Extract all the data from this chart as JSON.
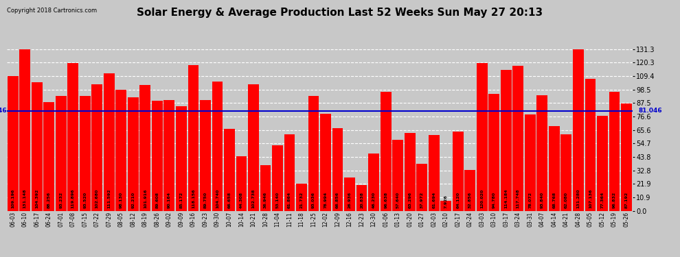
{
  "title": "Solar Energy & Average Production Last 52 Weeks Sun May 27 20:13",
  "copyright": "Copyright 2018 Cartronics.com",
  "average_line": 81.046,
  "bar_color": "#ff0000",
  "average_line_color": "#0000cc",
  "background_color": "#c8c8c8",
  "plot_bg_color": "#c8c8c8",
  "legend_avg_color": "#0000cc",
  "legend_weekly_color": "#ff0000",
  "yticks": [
    0.0,
    10.9,
    21.9,
    32.8,
    43.8,
    54.7,
    65.6,
    76.6,
    87.5,
    98.5,
    109.4,
    120.3,
    131.3
  ],
  "dates": [
    "06-03",
    "06-10",
    "06-17",
    "06-24",
    "07-01",
    "07-08",
    "07-15",
    "07-22",
    "07-29",
    "08-05",
    "08-12",
    "08-19",
    "08-26",
    "09-02",
    "09-09",
    "09-16",
    "09-23",
    "09-30",
    "10-07",
    "10-14",
    "10-21",
    "10-28",
    "11-04",
    "11-11",
    "11-18",
    "11-25",
    "12-02",
    "12-09",
    "12-16",
    "12-23",
    "12-30",
    "01-06",
    "01-13",
    "01-20",
    "01-27",
    "02-03",
    "02-10",
    "02-17",
    "02-24",
    "03-03",
    "03-10",
    "03-17",
    "03-24",
    "03-31",
    "04-07",
    "04-14",
    "04-21",
    "04-28",
    "05-05",
    "05-12",
    "05-19",
    "05-26"
  ],
  "values": [
    109.196,
    131.148,
    104.392,
    88.256,
    93.232,
    119.896,
    93.52,
    102.68,
    111.592,
    98.13,
    92.21,
    101.916,
    89.608,
    90.164,
    85.172,
    118.156,
    89.75,
    104.74,
    66.658,
    44.308,
    102.738,
    36.946,
    53.14,
    61.864,
    21.732,
    93.036,
    78.994,
    66.856,
    26.936,
    20.838,
    46.23,
    96.638,
    57.64,
    63.296,
    37.972,
    61.694,
    7.926,
    64.12,
    32.856,
    120.02,
    94.78,
    114.184,
    117.748,
    78.072,
    93.84,
    68.768,
    62.08,
    131.28,
    107.136,
    77.364,
    96.832,
    87.192
  ],
  "ylim_max": 142,
  "bar_width": 0.9,
  "label_fontsize": 4.5,
  "tick_fontsize": 7,
  "xtick_fontsize": 5.5,
  "title_fontsize": 11
}
